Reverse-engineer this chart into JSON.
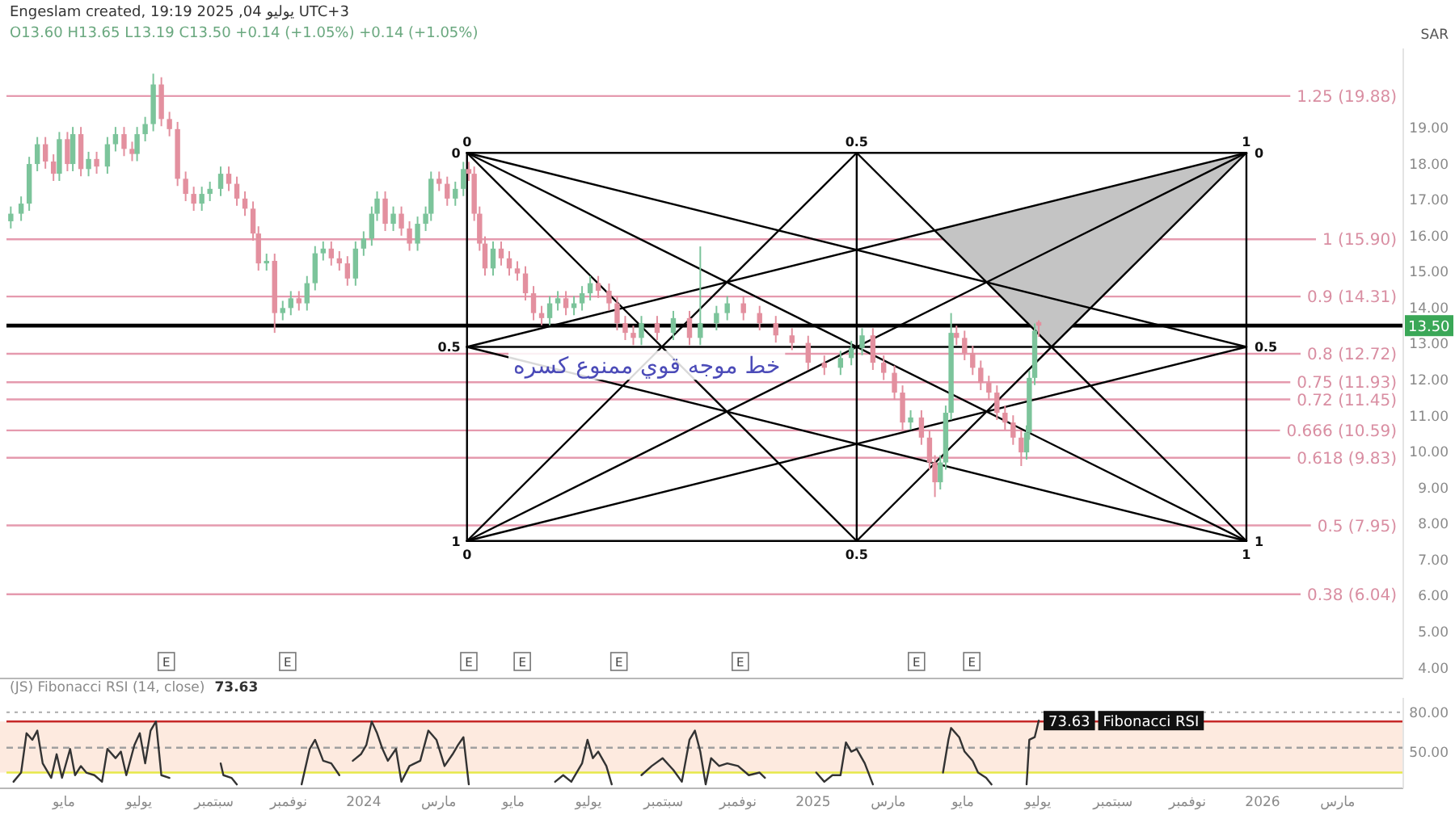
{
  "chart_data": [
    {
      "type": "candlestick",
      "ylabel": "SAR",
      "tick_labels": "y",
      "xlim": [
        2023.191,
        2026.313
      ],
      "ylim": [
        3.7,
        21.2
      ],
      "yticks": [
        {
          "value": 4,
          "label": "4.00"
        },
        {
          "value": 5,
          "label": "5.00"
        },
        {
          "value": 6,
          "label": "6.00"
        },
        {
          "value": 7,
          "label": "7.00"
        },
        {
          "value": 8,
          "label": "8.00"
        },
        {
          "value": 9,
          "label": "9.00"
        },
        {
          "value": 10,
          "label": "10.00"
        },
        {
          "value": 11,
          "label": "11.00"
        },
        {
          "value": 12,
          "label": "12.00"
        },
        {
          "value": 13,
          "label": "13.00"
        },
        {
          "value": 14,
          "label": "14.00"
        },
        {
          "value": 15,
          "label": "15.00"
        },
        {
          "value": 16,
          "label": "16.00"
        },
        {
          "value": 17,
          "label": "17.00"
        },
        {
          "value": 18,
          "label": "18.00"
        },
        {
          "value": 19,
          "label": "19.00"
        }
      ],
      "x": [
        2023.215,
        2023.238,
        2023.256,
        2023.274,
        2023.292,
        2023.31,
        2023.323,
        2023.341,
        2023.353,
        2023.371,
        2023.388,
        2023.406,
        2023.43,
        2023.448,
        2023.467,
        2023.485,
        2023.496,
        2023.514,
        2023.532,
        2023.55,
        2023.568,
        2023.586,
        2023.604,
        2023.622,
        2023.64,
        2023.658,
        2023.682,
        2023.7,
        2023.718,
        2023.736,
        2023.754,
        2023.766,
        2023.784,
        2023.802,
        2023.82,
        2023.838,
        2023.856,
        2023.874,
        2023.892,
        2023.91,
        2023.928,
        2023.946,
        2023.964,
        2023.982,
        2024.0,
        2024.018,
        2024.03,
        2024.048,
        2024.066,
        2024.084,
        2024.102,
        2024.12,
        2024.138,
        2024.15,
        2024.168,
        2024.186,
        2024.204,
        2024.222,
        2024.234,
        2024.246,
        2024.258,
        2024.27,
        2024.288,
        2024.306,
        2024.324,
        2024.342,
        2024.36,
        2024.378,
        2024.396,
        2024.414,
        2024.432,
        2024.45,
        2024.468,
        2024.486,
        2024.504,
        2024.522,
        2024.546,
        2024.564,
        2024.582,
        2024.6,
        2024.618,
        2024.653,
        2024.689,
        2024.725,
        2024.749,
        2024.785,
        2024.809,
        2024.845,
        2024.881,
        2024.917,
        2024.953,
        2024.989,
        2025.025,
        2025.061,
        2025.085,
        2025.109,
        2025.133,
        2025.157,
        2025.181,
        2025.199,
        2025.217,
        2025.241,
        2025.259,
        2025.271,
        2025.283,
        2025.295,
        2025.307,
        2025.319,
        2025.337,
        2025.355,
        2025.373,
        2025.391,
        2025.409,
        2025.427,
        2025.445,
        2025.463,
        2025.475,
        2025.481,
        2025.493,
        2025.502
      ],
      "ohlc": [
        [
          16.4,
          16.81,
          16.2,
          16.61
        ],
        [
          16.61,
          17.09,
          16.41,
          16.89
        ],
        [
          16.89,
          18.19,
          16.69,
          17.99
        ],
        [
          17.99,
          18.74,
          17.79,
          18.54
        ],
        [
          18.54,
          18.74,
          17.86,
          18.06
        ],
        [
          18.06,
          18.26,
          17.52,
          17.72
        ],
        [
          17.72,
          18.88,
          17.52,
          18.68
        ],
        [
          18.68,
          18.88,
          17.79,
          17.99
        ],
        [
          17.99,
          19.02,
          17.79,
          18.82
        ],
        [
          18.82,
          19.02,
          17.65,
          17.85
        ],
        [
          17.85,
          18.33,
          17.65,
          18.13
        ],
        [
          18.13,
          18.33,
          17.72,
          17.92
        ],
        [
          17.92,
          18.74,
          17.72,
          18.54
        ],
        [
          18.54,
          19.02,
          18.34,
          18.82
        ],
        [
          18.82,
          19.02,
          18.21,
          18.41
        ],
        [
          18.41,
          18.61,
          18.07,
          18.27
        ],
        [
          18.27,
          19.02,
          18.07,
          18.82
        ],
        [
          18.82,
          19.3,
          18.62,
          19.1
        ],
        [
          19.1,
          20.5,
          18.9,
          20.2
        ],
        [
          20.2,
          20.4,
          19.04,
          19.24
        ],
        [
          19.24,
          19.44,
          18.76,
          18.96
        ],
        [
          18.96,
          19.16,
          17.38,
          17.58
        ],
        [
          17.58,
          17.78,
          16.96,
          17.16
        ],
        [
          17.16,
          17.36,
          16.69,
          16.89
        ],
        [
          16.89,
          17.36,
          16.69,
          17.16
        ],
        [
          17.16,
          17.5,
          16.96,
          17.3
        ],
        [
          17.3,
          17.92,
          17.1,
          17.72
        ],
        [
          17.72,
          17.92,
          17.24,
          17.44
        ],
        [
          17.44,
          17.64,
          16.83,
          17.03
        ],
        [
          17.03,
          17.23,
          16.55,
          16.75
        ],
        [
          16.75,
          16.95,
          15.86,
          16.06
        ],
        [
          16.06,
          16.26,
          15.03,
          15.23
        ],
        [
          15.23,
          15.5,
          15.03,
          15.3
        ],
        [
          15.3,
          15.5,
          13.3,
          13.85
        ],
        [
          13.85,
          14.19,
          13.65,
          13.99
        ],
        [
          13.99,
          14.46,
          13.79,
          14.26
        ],
        [
          14.26,
          14.46,
          13.92,
          14.12
        ],
        [
          14.12,
          14.88,
          13.92,
          14.68
        ],
        [
          14.68,
          15.71,
          14.48,
          15.51
        ],
        [
          15.51,
          15.84,
          15.31,
          15.64
        ],
        [
          15.64,
          15.84,
          15.17,
          15.37
        ],
        [
          15.37,
          15.57,
          15.03,
          15.23
        ],
        [
          15.23,
          15.43,
          14.61,
          14.81
        ],
        [
          14.81,
          15.84,
          14.61,
          15.64
        ],
        [
          15.64,
          16.12,
          15.44,
          15.92
        ],
        [
          15.92,
          16.81,
          15.72,
          16.61
        ],
        [
          16.61,
          17.23,
          16.41,
          17.03
        ],
        [
          17.03,
          17.23,
          16.13,
          16.33
        ],
        [
          16.33,
          16.81,
          16.13,
          16.61
        ],
        [
          16.61,
          16.81,
          16.0,
          16.2
        ],
        [
          16.2,
          16.4,
          15.58,
          15.78
        ],
        [
          15.78,
          16.53,
          15.58,
          16.33
        ],
        [
          16.33,
          16.81,
          16.13,
          16.61
        ],
        [
          16.61,
          17.78,
          16.41,
          17.58
        ],
        [
          17.58,
          17.78,
          17.24,
          17.44
        ],
        [
          17.44,
          17.64,
          16.83,
          17.03
        ],
        [
          17.03,
          17.5,
          16.83,
          17.3
        ],
        [
          17.3,
          18.05,
          17.1,
          17.85
        ],
        [
          17.85,
          18.05,
          17.52,
          17.72
        ],
        [
          17.72,
          17.92,
          16.41,
          16.61
        ],
        [
          16.61,
          16.81,
          15.58,
          15.78
        ],
        [
          15.78,
          15.98,
          14.89,
          15.09
        ],
        [
          15.09,
          15.84,
          14.89,
          15.64
        ],
        [
          15.64,
          15.84,
          15.17,
          15.37
        ],
        [
          15.37,
          15.57,
          14.89,
          15.09
        ],
        [
          15.09,
          15.29,
          14.75,
          14.95
        ],
        [
          14.95,
          15.15,
          14.2,
          14.4
        ],
        [
          14.4,
          14.6,
          13.65,
          13.85
        ],
        [
          13.85,
          14.05,
          13.51,
          13.71
        ],
        [
          13.71,
          14.32,
          13.51,
          14.12
        ],
        [
          14.12,
          14.46,
          13.92,
          14.26
        ],
        [
          14.26,
          14.46,
          13.79,
          13.99
        ],
        [
          13.99,
          14.32,
          13.79,
          14.12
        ],
        [
          14.12,
          14.6,
          13.92,
          14.4
        ],
        [
          14.4,
          14.88,
          14.2,
          14.68
        ],
        [
          14.68,
          14.88,
          14.27,
          14.47
        ],
        [
          14.47,
          14.67,
          13.92,
          14.12
        ],
        [
          14.12,
          14.32,
          13.37,
          13.57
        ],
        [
          13.57,
          13.77,
          13.1,
          13.3
        ],
        [
          13.3,
          13.5,
          12.96,
          13.16
        ],
        [
          13.16,
          13.77,
          12.96,
          13.57
        ],
        [
          13.57,
          13.77,
          13.1,
          13.3
        ],
        [
          13.3,
          13.91,
          13.1,
          13.71
        ],
        [
          13.71,
          13.91,
          12.96,
          13.16
        ],
        [
          13.16,
          15.7,
          12.96,
          13.57
        ],
        [
          13.57,
          14.05,
          13.37,
          13.85
        ],
        [
          13.85,
          14.32,
          13.65,
          14.12
        ],
        [
          14.12,
          14.32,
          13.65,
          13.85
        ],
        [
          13.85,
          14.05,
          13.37,
          13.57
        ],
        [
          13.57,
          13.77,
          13.03,
          13.23
        ],
        [
          13.23,
          13.43,
          12.82,
          13.02
        ],
        [
          13.02,
          13.22,
          12.27,
          12.47
        ],
        [
          12.47,
          12.67,
          12.13,
          12.33
        ],
        [
          12.33,
          12.8,
          12.13,
          12.6
        ],
        [
          12.6,
          13.08,
          12.4,
          12.88
        ],
        [
          12.88,
          13.43,
          12.68,
          13.23
        ],
        [
          13.23,
          13.43,
          12.27,
          12.47
        ],
        [
          12.47,
          12.67,
          11.99,
          12.19
        ],
        [
          12.19,
          12.39,
          11.44,
          11.64
        ],
        [
          11.64,
          11.84,
          10.61,
          10.81
        ],
        [
          10.81,
          11.15,
          10.61,
          10.95
        ],
        [
          10.95,
          11.15,
          10.19,
          10.39
        ],
        [
          10.39,
          10.59,
          9.5,
          9.7
        ],
        [
          9.7,
          9.9,
          8.74,
          9.15
        ],
        [
          9.15,
          9.9,
          8.95,
          9.7
        ],
        [
          9.7,
          11.28,
          9.5,
          11.08
        ],
        [
          11.08,
          13.85,
          10.88,
          13.3
        ],
        [
          13.3,
          13.5,
          12.96,
          13.16
        ],
        [
          13.16,
          13.36,
          12.54,
          12.74
        ],
        [
          12.74,
          12.94,
          12.13,
          12.33
        ],
        [
          12.33,
          12.53,
          11.71,
          11.91
        ],
        [
          11.91,
          12.11,
          11.44,
          11.64
        ],
        [
          11.64,
          11.84,
          10.88,
          11.08
        ],
        [
          11.08,
          11.28,
          10.61,
          10.81
        ],
        [
          10.81,
          11.01,
          10.19,
          10.39
        ],
        [
          10.39,
          10.59,
          9.6,
          9.98
        ],
        [
          9.98,
          10.73,
          9.78,
          10.53
        ],
        [
          10.53,
          12.25,
          10.33,
          12.05
        ],
        [
          12.05,
          13.56,
          11.85,
          13.36
        ],
        [
          13.6,
          13.65,
          13.19,
          13.5
        ]
      ],
      "series": [
        {
          "type": "line",
          "color": "#000000",
          "x": [
            2024.23,
            2025.964
          ],
          "values": [
            18.3,
            18.3
          ]
        },
        {
          "type": "line",
          "color": "#000000",
          "x": [
            2024.23,
            2025.964
          ],
          "values": [
            7.52,
            7.52
          ]
        },
        {
          "type": "line",
          "color": "#000000",
          "x": [
            2024.23,
            2024.23
          ],
          "values": [
            18.3,
            7.52
          ]
        },
        {
          "type": "line",
          "color": "#000000",
          "x": [
            2025.964,
            2025.964
          ],
          "values": [
            18.3,
            7.52
          ]
        },
        {
          "type": "line",
          "color": "#000000",
          "x": [
            2025.097,
            2025.097
          ],
          "values": [
            18.3,
            7.52
          ]
        },
        {
          "type": "line",
          "color": "#000000",
          "x": [
            2024.23,
            2025.964
          ],
          "values": [
            12.91,
            12.91
          ]
        },
        {
          "type": "line",
          "color": "#000000",
          "x": [
            2024.23,
            2025.964
          ],
          "values": [
            18.3,
            7.52
          ]
        },
        {
          "type": "line",
          "color": "#000000",
          "x": [
            2024.23,
            2025.964
          ],
          "values": [
            7.52,
            18.3
          ]
        },
        {
          "type": "line",
          "color": "#000000",
          "x": [
            2024.23,
            2025.964
          ],
          "values": [
            18.3,
            12.91
          ]
        },
        {
          "type": "line",
          "color": "#000000",
          "x": [
            2024.23,
            2025.964
          ],
          "values": [
            7.52,
            12.91
          ]
        },
        {
          "type": "line",
          "color": "#000000",
          "x": [
            2024.23,
            2025.964
          ],
          "values": [
            12.91,
            18.3
          ]
        },
        {
          "type": "line",
          "color": "#000000",
          "x": [
            2024.23,
            2025.964
          ],
          "values": [
            12.91,
            7.52
          ]
        },
        {
          "type": "line",
          "color": "#000000",
          "x": [
            2024.23,
            2025.097
          ],
          "values": [
            18.3,
            7.52
          ]
        },
        {
          "type": "line",
          "color": "#000000",
          "x": [
            2025.964,
            2025.097
          ],
          "values": [
            18.3,
            7.52
          ]
        },
        {
          "type": "line",
          "color": "#000000",
          "x": [
            2024.23,
            2025.097
          ],
          "values": [
            7.52,
            18.3
          ]
        },
        {
          "type": "line",
          "color": "#000000",
          "x": [
            2025.964,
            2025.097
          ],
          "values": [
            7.52,
            18.3
          ]
        },
        {
          "type": "area",
          "color": "#c4c4c4",
          "x": [
            2025.27,
            2025.964,
            2025.531
          ],
          "values": [
            16.14,
            18.3,
            12.91
          ]
        }
      ],
      "ref_lines": [
        {
          "axis": "y",
          "value": 19.88,
          "label": "1.25 (19.88)",
          "color": "#e59aae"
        },
        {
          "axis": "y",
          "value": 15.9,
          "label": "1 (15.90)",
          "color": "#e59aae"
        },
        {
          "axis": "y",
          "value": 14.31,
          "label": "0.9 (14.31)",
          "color": "#e59aae"
        },
        {
          "axis": "y",
          "value": 12.72,
          "label": "0.8 (12.72)",
          "color": "#e59aae"
        },
        {
          "axis": "y",
          "value": 11.93,
          "label": "0.75 (11.93)",
          "color": "#e59aae"
        },
        {
          "axis": "y",
          "value": 11.45,
          "label": "0.72 (11.45)",
          "color": "#e59aae"
        },
        {
          "axis": "y",
          "value": 10.59,
          "label": "0.666 (10.59)",
          "color": "#e59aae"
        },
        {
          "axis": "y",
          "value": 9.83,
          "label": "0.618 (9.83)",
          "color": "#e59aae"
        },
        {
          "axis": "y",
          "value": 7.95,
          "label": "0.5 (7.95)",
          "color": "#e59aae"
        },
        {
          "axis": "y",
          "value": 6.04,
          "label": "0.38 (6.04)",
          "color": "#e59aae"
        },
        {
          "axis": "y",
          "value": 13.5,
          "label": "13.50",
          "color": "#000000"
        }
      ],
      "annotations": [
        "Engeslam created, 19:19 2025 ,04 يوليو UTC+3",
        "O13.60 H13.65 L13.19 C13.50 +0.14 (+1.05%) +0.14 (+1.05%)",
        {
          "text": "0",
          "x": 2024.23,
          "y": 18.3
        },
        {
          "text": "0.5",
          "x": 2025.097,
          "y": 18.3
        },
        {
          "text": "1",
          "x": 2025.964,
          "y": 18.3
        },
        {
          "text": "0",
          "x": 2024.23,
          "y": 18.3
        },
        {
          "text": "0.5",
          "x": 2024.23,
          "y": 12.91
        },
        {
          "text": "1",
          "x": 2024.23,
          "y": 7.52
        },
        {
          "text": "0",
          "x": 2025.964,
          "y": 18.3
        },
        {
          "text": "0.5",
          "x": 2025.964,
          "y": 12.91
        },
        {
          "text": "1",
          "x": 2025.964,
          "y": 7.52
        },
        {
          "text": "0",
          "x": 2024.23,
          "y": 7.52
        },
        {
          "text": "0.5",
          "x": 2025.097,
          "y": 7.52
        },
        {
          "text": "1",
          "x": 2025.964,
          "y": 7.52
        },
        {
          "text": "خط موجه قوي ممنوع كسره",
          "x": 2024.63,
          "y": 12.4
        },
        {
          "text": "E",
          "x": 2023.561
        },
        {
          "text": "E",
          "x": 2023.831
        },
        {
          "text": "E",
          "x": 2024.234
        },
        {
          "text": "E",
          "x": 2024.353
        },
        {
          "text": "E",
          "x": 2024.568
        },
        {
          "text": "E",
          "x": 2024.838
        },
        {
          "text": "E",
          "x": 2025.23
        },
        {
          "text": "E",
          "x": 2025.353
        }
      ]
    },
    {
      "type": "line",
      "title": "(JS) Fibonacci RSI (14, close)",
      "annotations": [
        "73.63"
      ],
      "xlim": [
        2023.191,
        2026.313
      ],
      "ylim": [
        22,
        91
      ],
      "xticks": [
        {
          "value": 2023.333,
          "label": "مايو"
        },
        {
          "value": 2023.5,
          "label": "يوليو"
        },
        {
          "value": 2023.667,
          "label": "سبتمبر"
        },
        {
          "value": 2023.833,
          "label": "نوفمبر"
        },
        2024,
        {
          "value": 2024.167,
          "label": "مارس"
        },
        {
          "value": 2024.333,
          "label": "مايو"
        },
        {
          "value": 2024.5,
          "label": "يوليو"
        },
        {
          "value": 2024.667,
          "label": "سبتمبر"
        },
        {
          "value": 2024.833,
          "label": "نوفمبر"
        },
        2025,
        {
          "value": 2025.167,
          "label": "مارس"
        },
        {
          "value": 2025.333,
          "label": "مايو"
        },
        {
          "value": 2025.5,
          "label": "يوليو"
        },
        {
          "value": 2025.667,
          "label": "سبتمبر"
        },
        {
          "value": 2025.833,
          "label": "نوفمبر"
        },
        2026,
        {
          "value": 2026.167,
          "label": "مارس"
        }
      ],
      "yticks": [
        {
          "value": 50,
          "label": "50.00"
        },
        {
          "value": 80,
          "label": "80.00"
        }
      ],
      "bands": [
        {
          "axis": "y",
          "from": 34,
          "to": 73,
          "color": "#fdeadf"
        }
      ],
      "ref_lines": [
        {
          "axis": "y",
          "value": 80,
          "color": "#b5b5b5",
          "line_style": "dotted"
        },
        {
          "axis": "y",
          "value": 73,
          "color": "#c62828",
          "line_style": "solid"
        },
        {
          "axis": "y",
          "value": 53,
          "color": "#a0a0a0",
          "line_style": "dashed"
        },
        {
          "axis": "y",
          "value": 34,
          "color": "#e6e84a",
          "line_style": "solid"
        }
      ],
      "series": [
        {
          "color": "#333333",
          "x": [
            2023.221,
            2023.238,
            2023.25,
            2023.263,
            2023.274,
            2023.286,
            2023.305,
            2023.317,
            2023.329,
            2023.347,
            2023.358,
            2023.371,
            2023.383,
            2023.401,
            2023.418,
            2023.43,
            2023.448,
            2023.46,
            2023.472,
            2023.49,
            2023.502,
            2023.514,
            2023.526,
            2023.538,
            2023.55,
            2023.568
          ],
          "values": [
            27,
            34,
            64,
            59,
            66,
            41,
            30,
            48,
            30,
            52,
            32,
            39,
            34,
            32,
            27,
            52,
            45,
            50,
            32,
            55,
            64,
            41,
            66,
            73,
            32,
            30
          ]
        },
        {
          "color": "#333333",
          "x": [
            2023.682,
            2023.688,
            2023.706,
            2023.718
          ],
          "values": [
            41,
            32,
            30,
            25
          ]
        },
        {
          "color": "#333333",
          "x": [
            2023.862,
            2023.88,
            2023.892,
            2023.91,
            2023.928,
            2023.946
          ],
          "values": [
            25,
            52,
            59,
            43,
            41,
            32
          ]
        },
        {
          "color": "#333333",
          "x": [
            2023.976,
            2023.994,
            2024.006,
            2024.018,
            2024.03,
            2024.042,
            2024.054,
            2024.072,
            2024.084,
            2024.102,
            2024.126,
            2024.144,
            2024.162,
            2024.18,
            2024.198,
            2024.21,
            2024.222,
            2024.234
          ],
          "values": [
            43,
            48,
            55,
            73,
            64,
            52,
            43,
            52,
            27,
            39,
            43,
            66,
            59,
            39,
            48,
            55,
            61,
            25
          ]
        },
        {
          "color": "#333333",
          "x": [
            2024.426,
            2024.444,
            2024.462,
            2024.486,
            2024.498,
            2024.51,
            2024.522,
            2024.54,
            2024.552
          ],
          "values": [
            27,
            32,
            27,
            41,
            59,
            45,
            50,
            39,
            25
          ]
        },
        {
          "color": "#333333",
          "x": [
            2024.618,
            2024.641,
            2024.665,
            2024.689,
            2024.708,
            2024.725,
            2024.737,
            2024.749,
            2024.761,
            2024.773,
            2024.791,
            2024.809,
            2024.833,
            2024.857,
            2024.881,
            2024.893
          ],
          "values": [
            32,
            39,
            45,
            36,
            27,
            59,
            66,
            50,
            25,
            45,
            39,
            41,
            39,
            32,
            34,
            30
          ]
        },
        {
          "color": "#333333",
          "x": [
            2025.007,
            2025.025,
            2025.043,
            2025.061,
            2025.073,
            2025.085,
            2025.097,
            2025.115,
            2025.133
          ],
          "values": [
            34,
            27,
            32,
            32,
            57,
            50,
            52,
            41,
            25
          ]
        },
        {
          "color": "#333333",
          "x": [
            2025.289,
            2025.301,
            2025.307,
            2025.325,
            2025.337,
            2025.355,
            2025.367,
            2025.385,
            2025.397
          ],
          "values": [
            34,
            59,
            68,
            61,
            50,
            43,
            34,
            30,
            25
          ]
        },
        {
          "name": "Fibonacci RSI",
          "color": "#333333",
          "x": [
            2025.475,
            2025.481,
            2025.493,
            2025.502
          ],
          "values": [
            25,
            59,
            61,
            73.63
          ],
          "value_labels": [
            null,
            null,
            null,
            "73.63"
          ]
        }
      ]
    }
  ]
}
